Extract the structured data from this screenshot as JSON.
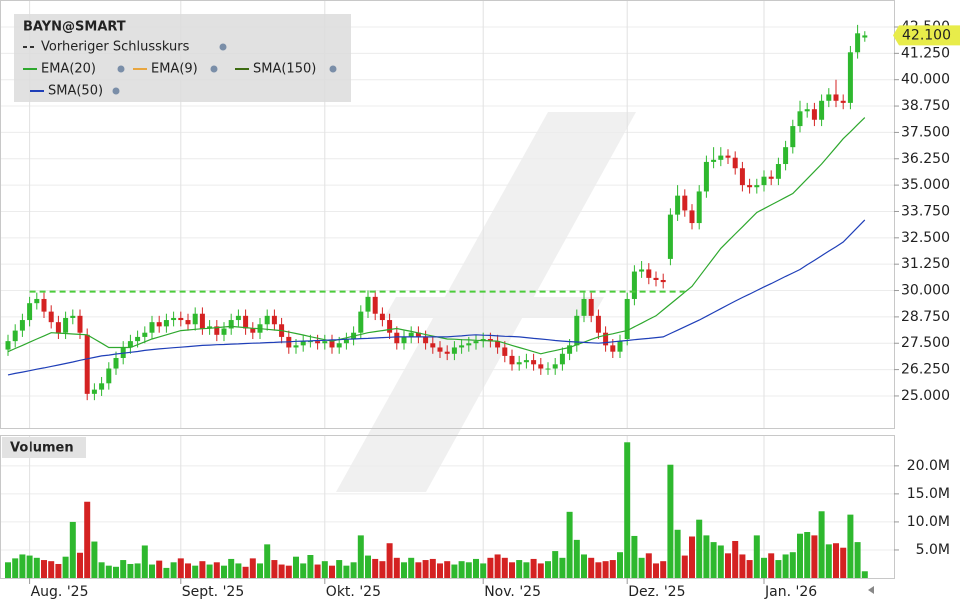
{
  "chart_data": [
    {
      "type": "candlestick",
      "title": "BAYN@SMART",
      "up_color": "#2eb82e",
      "down_color": "#d42222",
      "ylim": [
        23.48,
        43.78
      ],
      "yticks": [
        {
          "value": 25,
          "label": "25.000"
        },
        {
          "value": 26.25,
          "label": "26.250"
        },
        {
          "value": 27.5,
          "label": "27.500"
        },
        {
          "value": 28.75,
          "label": "28.750"
        },
        {
          "value": 30,
          "label": "30.000"
        },
        {
          "value": 31.25,
          "label": "31.250"
        },
        {
          "value": 32.5,
          "label": "32.500"
        },
        {
          "value": 33.75,
          "label": "33.750"
        },
        {
          "value": 35,
          "label": "35.000"
        },
        {
          "value": 36.25,
          "label": "36.250"
        },
        {
          "value": 37.5,
          "label": "37.500"
        },
        {
          "value": 38.75,
          "label": "38.750"
        },
        {
          "value": 40,
          "label": "40.000"
        },
        {
          "value": 41.25,
          "label": "41.250"
        },
        {
          "value": 42.5,
          "label": "42.500"
        }
      ],
      "grid": true,
      "current_price": {
        "value": 42.1,
        "label": "42.100",
        "color": "#e8ec4a"
      },
      "reference_line": {
        "name": "Vorheriger Schlusskurs",
        "value": 29.95,
        "color": "#4ccc3c"
      },
      "open": [
        27.2,
        27.6,
        28.1,
        28.6,
        29.4,
        29.6,
        29.0,
        28.5,
        28.0,
        28.7,
        28.8,
        27.9,
        25.1,
        25.3,
        25.6,
        26.3,
        26.8,
        27.3,
        27.6,
        27.8,
        28.0,
        28.5,
        28.3,
        28.6,
        28.7,
        28.6,
        28.4,
        28.9,
        28.2,
        28.3,
        27.9,
        28.2,
        28.6,
        28.8,
        28.2,
        28.0,
        28.4,
        28.8,
        28.4,
        27.8,
        27.3,
        27.4,
        27.6,
        27.6,
        27.5,
        27.6,
        27.3,
        27.5,
        27.7,
        28.0,
        29.0,
        29.7,
        28.9,
        28.6,
        28.0,
        27.5,
        27.8,
        28.0,
        27.8,
        27.5,
        27.3,
        27.1,
        27.0,
        27.3,
        27.4,
        27.5,
        27.6,
        27.7,
        27.6,
        27.3,
        26.9,
        26.5,
        26.6,
        26.7,
        26.5,
        26.3,
        26.3,
        26.5,
        27.0,
        27.4,
        28.8,
        29.6,
        28.8,
        28.0,
        27.4,
        27.1,
        27.7,
        29.6,
        30.9,
        31.0,
        30.6,
        30.5,
        31.5,
        33.6,
        34.5,
        33.8,
        33.2,
        34.7,
        36.1,
        36.2,
        36.4,
        36.3,
        35.8,
        35.0,
        34.9,
        35.0,
        35.4,
        35.3,
        36.0,
        36.8,
        37.8,
        38.5,
        38.6,
        38.1,
        39.0,
        39.3,
        39.0,
        38.9,
        41.3,
        42.0
      ],
      "high": [
        27.9,
        28.4,
        28.9,
        29.7,
        29.9,
        29.9,
        29.3,
        28.8,
        29.0,
        29.1,
        29.1,
        28.2,
        25.6,
        25.9,
        26.6,
        27.1,
        27.6,
        27.9,
        28.1,
        28.3,
        28.8,
        28.8,
        28.9,
        29.0,
        29.0,
        28.9,
        29.2,
        29.2,
        28.6,
        28.6,
        28.5,
        28.9,
        29.1,
        29.1,
        28.5,
        28.7,
        29.1,
        29.1,
        28.7,
        28.1,
        27.7,
        27.9,
        27.9,
        27.9,
        27.9,
        27.9,
        27.8,
        28.0,
        28.3,
        29.3,
        30.0,
        30.0,
        29.2,
        28.9,
        28.3,
        28.1,
        28.3,
        28.3,
        28.1,
        27.8,
        27.6,
        27.4,
        27.6,
        27.7,
        27.8,
        27.9,
        28.0,
        28.0,
        27.9,
        27.6,
        27.2,
        26.9,
        27.0,
        27.0,
        26.8,
        26.6,
        26.8,
        27.3,
        27.7,
        29.1,
        29.9,
        29.9,
        29.1,
        28.3,
        27.7,
        27.9,
        29.9,
        31.2,
        31.4,
        31.3,
        30.9,
        30.8,
        33.9,
        35.0,
        34.8,
        34.1,
        35.0,
        36.4,
        36.8,
        36.8,
        36.7,
        36.6,
        36.1,
        35.3,
        35.3,
        35.7,
        35.7,
        36.3,
        37.1,
        38.1,
        39.0,
        38.9,
        38.9,
        39.3,
        39.6,
        40.0,
        39.3,
        41.6,
        42.6,
        42.3
      ],
      "low": [
        26.9,
        27.3,
        27.8,
        28.3,
        29.1,
        28.7,
        28.2,
        27.7,
        27.7,
        28.4,
        27.7,
        24.8,
        24.8,
        25.0,
        25.3,
        26.0,
        26.5,
        27.0,
        27.3,
        27.5,
        27.7,
        28.0,
        28.0,
        28.3,
        28.3,
        28.1,
        28.1,
        27.9,
        27.9,
        27.6,
        27.6,
        27.9,
        28.3,
        27.9,
        27.7,
        27.7,
        28.1,
        28.1,
        27.5,
        27.0,
        27.0,
        27.1,
        27.3,
        27.2,
        27.2,
        27.0,
        27.0,
        27.2,
        27.4,
        27.7,
        28.7,
        28.6,
        28.3,
        27.7,
        27.2,
        27.2,
        27.5,
        27.5,
        27.2,
        27.0,
        26.8,
        26.7,
        26.7,
        27.0,
        27.1,
        27.2,
        27.3,
        27.3,
        27.0,
        26.6,
        26.2,
        26.2,
        26.3,
        26.2,
        26.0,
        26.0,
        26.0,
        26.2,
        26.7,
        27.1,
        28.5,
        28.5,
        27.7,
        27.1,
        26.8,
        26.8,
        27.4,
        29.3,
        30.6,
        30.3,
        30.2,
        30.1,
        31.2,
        33.3,
        33.5,
        32.9,
        32.9,
        34.4,
        35.8,
        35.9,
        36.0,
        35.5,
        34.7,
        34.6,
        34.6,
        34.7,
        35.0,
        35.0,
        35.7,
        36.5,
        37.5,
        38.2,
        37.8,
        37.8,
        38.7,
        38.7,
        38.6,
        38.6,
        41.0,
        41.8
      ],
      "close": [
        27.6,
        28.1,
        28.6,
        29.4,
        29.6,
        29.0,
        28.5,
        28.0,
        28.7,
        28.8,
        28.0,
        25.1,
        25.3,
        25.6,
        26.3,
        26.8,
        27.3,
        27.6,
        27.8,
        28.0,
        28.5,
        28.3,
        28.6,
        28.7,
        28.6,
        28.4,
        28.9,
        28.2,
        28.3,
        27.9,
        28.2,
        28.6,
        28.8,
        28.2,
        28.0,
        28.4,
        28.8,
        28.4,
        27.8,
        27.3,
        27.4,
        27.6,
        27.6,
        27.5,
        27.6,
        27.3,
        27.5,
        27.7,
        28.0,
        29.0,
        29.7,
        28.9,
        28.6,
        28.0,
        27.5,
        27.8,
        28.0,
        27.8,
        27.5,
        27.3,
        27.1,
        27.0,
        27.3,
        27.4,
        27.5,
        27.6,
        27.7,
        27.6,
        27.3,
        26.9,
        26.5,
        26.6,
        26.7,
        26.5,
        26.3,
        26.3,
        26.5,
        27.0,
        27.4,
        28.8,
        29.6,
        28.8,
        28.0,
        27.4,
        27.1,
        27.6,
        29.6,
        30.9,
        31.0,
        30.6,
        30.5,
        30.4,
        33.6,
        34.5,
        33.8,
        33.2,
        34.7,
        36.1,
        36.2,
        36.4,
        36.3,
        35.8,
        35.0,
        34.9,
        35.0,
        35.4,
        35.3,
        36.0,
        36.8,
        37.8,
        38.5,
        38.6,
        38.1,
        39.0,
        39.3,
        39.0,
        38.9,
        41.3,
        42.2,
        42.1
      ],
      "series": [
        {
          "name": "EMA(20)",
          "color": "#2ea82e",
          "values": [
            27.1,
            27.25,
            27.4,
            27.55,
            27.7,
            27.85,
            28.0,
            27.98,
            27.96,
            27.94,
            27.92,
            27.9,
            27.7,
            27.5,
            27.3,
            27.3,
            27.3,
            27.3,
            27.43,
            27.57,
            27.7,
            27.8,
            27.9,
            28.0,
            28.1,
            28.13,
            28.16,
            28.19,
            28.21,
            28.24,
            28.27,
            28.3,
            28.27,
            28.24,
            28.21,
            28.19,
            28.16,
            28.13,
            28.1,
            28.03,
            27.96,
            27.89,
            27.81,
            27.74,
            27.67,
            27.6,
            27.68,
            27.76,
            27.84,
            27.92,
            28.0,
            28.05,
            28.1,
            28.15,
            28.2,
            28.13,
            28.06,
            27.99,
            27.91,
            27.84,
            27.77,
            27.7,
            27.69,
            27.67,
            27.66,
            27.64,
            27.63,
            27.61,
            27.6,
            27.5,
            27.4,
            27.3,
            27.2,
            27.1,
            27.0,
            27.08,
            27.15,
            27.23,
            27.3,
            27.43,
            27.55,
            27.68,
            27.8,
            27.88,
            27.95,
            28.03,
            28.1,
            28.28,
            28.45,
            28.63,
            28.8,
            29.08,
            29.36,
            29.64,
            29.92,
            30.2,
            30.65,
            31.1,
            31.55,
            32.0,
            32.34,
            32.68,
            33.02,
            33.36,
            33.7,
            33.88,
            34.06,
            34.24,
            34.42,
            34.6,
            34.95,
            35.3,
            35.65,
            36.0,
            36.4,
            36.8,
            37.2,
            37.53,
            37.87,
            38.2
          ]
        },
        {
          "name": "EMA(9)",
          "color": "#e8a640"
        },
        {
          "name": "SMA(150)",
          "color": "#3d6b12"
        },
        {
          "name": "SMA(50)",
          "color": "#1f3fb8",
          "values": [
            26.0,
            26.07,
            26.13,
            26.2,
            26.27,
            26.33,
            26.4,
            26.47,
            26.54,
            26.61,
            26.69,
            26.76,
            26.83,
            26.9,
            26.94,
            26.99,
            27.03,
            27.07,
            27.11,
            27.16,
            27.2,
            27.23,
            27.26,
            27.29,
            27.31,
            27.34,
            27.37,
            27.4,
            27.41,
            27.43,
            27.44,
            27.46,
            27.47,
            27.49,
            27.5,
            27.51,
            27.53,
            27.54,
            27.56,
            27.57,
            27.59,
            27.6,
            27.61,
            27.63,
            27.64,
            27.66,
            27.67,
            27.69,
            27.7,
            27.72,
            27.73,
            27.75,
            27.77,
            27.78,
            27.8,
            27.8,
            27.8,
            27.8,
            27.8,
            27.8,
            27.8,
            27.8,
            27.83,
            27.85,
            27.88,
            27.9,
            27.88,
            27.87,
            27.85,
            27.83,
            27.82,
            27.8,
            27.77,
            27.73,
            27.7,
            27.67,
            27.63,
            27.6,
            27.58,
            27.56,
            27.54,
            27.52,
            27.5,
            27.53,
            27.57,
            27.6,
            27.63,
            27.67,
            27.7,
            27.73,
            27.77,
            27.8,
            27.96,
            28.12,
            28.28,
            28.44,
            28.6,
            28.78,
            28.96,
            29.14,
            29.32,
            29.5,
            29.67,
            29.83,
            30.0,
            30.17,
            30.33,
            30.5,
            30.67,
            30.83,
            31.0,
            31.22,
            31.43,
            31.65,
            31.87,
            32.08,
            32.3,
            32.65,
            33.0,
            33.35
          ]
        }
      ]
    },
    {
      "type": "bar",
      "title": "Volumen",
      "ylim": [
        0,
        25.5
      ],
      "yticks": [
        {
          "value": 5,
          "label": "5.0M"
        },
        {
          "value": 10,
          "label": "10.0M"
        },
        {
          "value": 15,
          "label": "15.0M"
        },
        {
          "value": 20,
          "label": "20.0M"
        }
      ],
      "categories": [
        null,
        null,
        null,
        "Aug. '25",
        null,
        null,
        null,
        null,
        null,
        null,
        null,
        null,
        null,
        null,
        null,
        null,
        null,
        null,
        null,
        null,
        null,
        null,
        null,
        null,
        "Sept. '25",
        null,
        null,
        null,
        null,
        null,
        null,
        null,
        null,
        null,
        null,
        null,
        null,
        null,
        null,
        null,
        null,
        null,
        null,
        null,
        "Okt. '25",
        null,
        null,
        null,
        null,
        null,
        null,
        null,
        null,
        null,
        null,
        null,
        null,
        null,
        null,
        null,
        null,
        null,
        null,
        null,
        null,
        null,
        "Nov. '25",
        null,
        null,
        null,
        null,
        null,
        null,
        null,
        null,
        null,
        null,
        null,
        null,
        null,
        null,
        null,
        null,
        null,
        null,
        null,
        "Dez. '25",
        null,
        null,
        null,
        null,
        null,
        null,
        null,
        null,
        null,
        null,
        null,
        null,
        null,
        null,
        null,
        null,
        null,
        null,
        "Jan. '26",
        null,
        null,
        null,
        null,
        null,
        null,
        null,
        null,
        null,
        null,
        null,
        null,
        null,
        null
      ],
      "values": [
        2.8,
        3.5,
        4.2,
        4.0,
        3.6,
        3.2,
        3.0,
        2.5,
        3.8,
        10.0,
        4.5,
        13.6,
        6.5,
        2.8,
        2.2,
        2.0,
        3.2,
        2.5,
        2.6,
        5.8,
        2.4,
        3.1,
        1.8,
        2.8,
        3.5,
        2.6,
        2.2,
        3.0,
        2.4,
        2.8,
        2.2,
        3.4,
        2.6,
        2.0,
        3.5,
        2.6,
        6.0,
        3.2,
        2.4,
        2.2,
        3.8,
        2.6,
        4.1,
        2.4,
        3.0,
        2.2,
        3.2,
        2.2,
        2.8,
        7.6,
        4.0,
        3.4,
        3.0,
        6.2,
        3.6,
        2.8,
        3.6,
        2.8,
        3.2,
        3.4,
        2.6,
        3.0,
        2.4,
        3.0,
        2.8,
        3.4,
        2.6,
        3.6,
        4.2,
        3.6,
        2.8,
        3.2,
        2.8,
        3.4,
        2.6,
        3.0,
        4.8,
        3.6,
        11.8,
        6.8,
        4.2,
        3.6,
        2.8,
        3.0,
        3.2,
        4.6,
        24.2,
        7.5,
        3.6,
        4.4,
        2.6,
        3.0,
        20.2,
        8.6,
        4.0,
        7.4,
        10.4,
        7.6,
        6.4,
        5.8,
        4.4,
        6.6,
        4.2,
        3.2,
        7.6,
        3.6,
        4.4,
        3.2,
        4.2,
        4.6,
        7.9,
        8.2,
        7.6,
        11.9,
        6.0,
        6.2,
        5.4,
        11.3,
        6.4,
        1.2
      ]
    }
  ]
}
